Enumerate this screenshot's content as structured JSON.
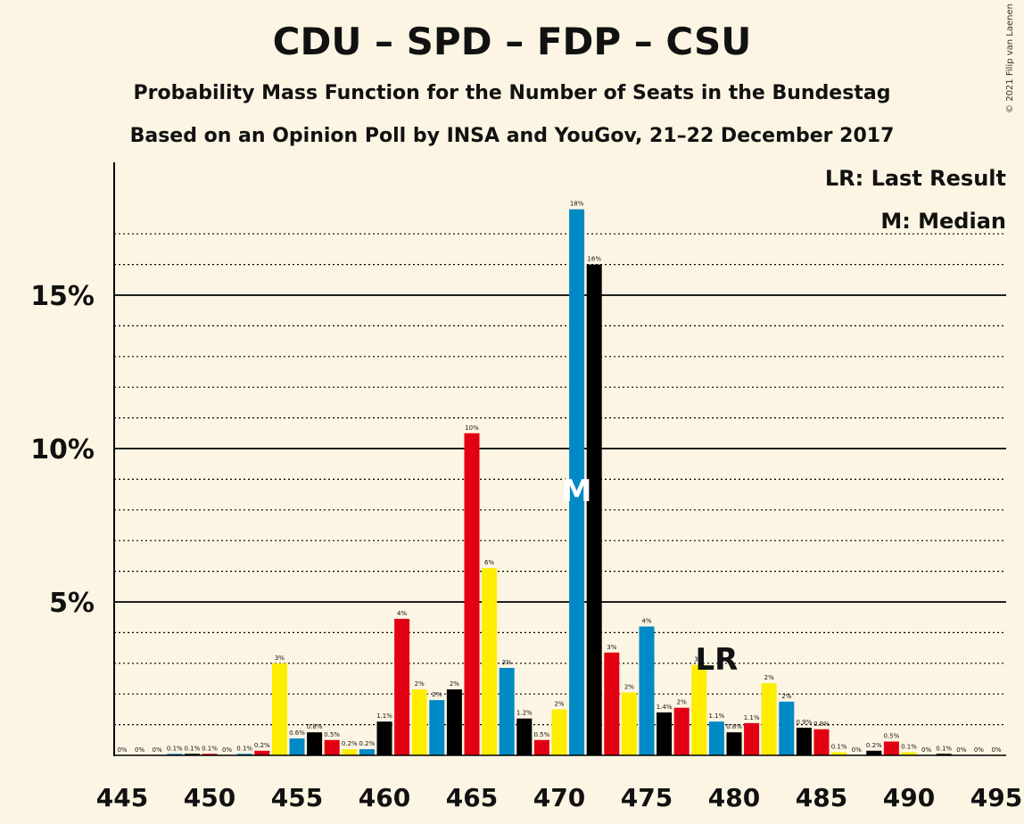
{
  "header": {
    "title": "CDU – SPD – FDP – CSU",
    "subtitle1": "Probability Mass Function for the Number of Seats in the Bundestag",
    "subtitle2": "Based on an Opinion Poll by INSA and YouGov, 21–22 December 2017",
    "copyright": "© 2021 Filip van Laenen"
  },
  "legend": {
    "last_result": "LR: Last Result",
    "median": "M: Median"
  },
  "colors": {
    "background": "#fdf5e3",
    "CDU": "#000000",
    "SPD": "#e30013",
    "FDP": "#ffed00",
    "CSU": "#008ac5"
  },
  "chart_data": {
    "type": "bar",
    "xlabel": "",
    "ylabel": "",
    "xlim": [
      445,
      495
    ],
    "ylim": [
      0,
      19
    ],
    "y_ticks": [
      {
        "value": 5,
        "label": "5%"
      },
      {
        "value": 10,
        "label": "10%"
      },
      {
        "value": 15,
        "label": "15%"
      }
    ],
    "x_ticks": [
      445,
      450,
      455,
      460,
      465,
      470,
      475,
      480,
      485,
      490,
      495
    ],
    "grid": "dotted every 1%, solid at 5%, 10%, 15%",
    "median_seat": 471,
    "last_result_seat": 479,
    "markers": {
      "median": "M",
      "last_result": "LR"
    },
    "bars": [
      {
        "x": 445,
        "value": 0.0,
        "label": "0%",
        "color": "CDU"
      },
      {
        "x": 446,
        "value": 0.0,
        "label": "0%",
        "color": "SPD"
      },
      {
        "x": 447,
        "value": 0.0,
        "label": "0%",
        "color": "FDP"
      },
      {
        "x": 448,
        "value": 0.05,
        "label": "0.1%",
        "color": "CSU"
      },
      {
        "x": 449,
        "value": 0.05,
        "label": "0.1%",
        "color": "CDU"
      },
      {
        "x": 450,
        "value": 0.05,
        "label": "0.1%",
        "color": "SPD"
      },
      {
        "x": 451,
        "value": 0.0,
        "label": "0%",
        "color": "FDP"
      },
      {
        "x": 452,
        "value": 0.05,
        "label": "0.1%",
        "color": "CSU"
      },
      {
        "x": 453,
        "value": 0.15,
        "label": "0.2%",
        "color": "SPD"
      },
      {
        "x": 454,
        "value": 3.0,
        "label": "3%",
        "color": "FDP"
      },
      {
        "x": 455,
        "value": 0.55,
        "label": "0.6%",
        "color": "CSU"
      },
      {
        "x": 456,
        "value": 0.75,
        "label": "0.8%",
        "color": "CDU"
      },
      {
        "x": 457,
        "value": 0.5,
        "label": "0.5%",
        "color": "SPD"
      },
      {
        "x": 458,
        "value": 0.2,
        "label": "0.2%",
        "color": "FDP"
      },
      {
        "x": 459,
        "value": 0.2,
        "label": "0.2%",
        "color": "CSU"
      },
      {
        "x": 460,
        "value": 1.1,
        "label": "1.1%",
        "color": "CDU"
      },
      {
        "x": 461,
        "value": 4.45,
        "label": "4%",
        "color": "SPD"
      },
      {
        "x": 462,
        "value": 2.15,
        "label": "2%",
        "color": "FDP"
      },
      {
        "x": 463,
        "value": 1.8,
        "label": "2%",
        "color": "CSU"
      },
      {
        "x": 464,
        "value": 2.15,
        "label": "2%",
        "color": "CDU"
      },
      {
        "x": 465,
        "value": 10.5,
        "label": "10%",
        "color": "SPD"
      },
      {
        "x": 466,
        "value": 6.1,
        "label": "6%",
        "color": "FDP"
      },
      {
        "x": 467,
        "value": 2.85,
        "label": "3%",
        "color": "CSU"
      },
      {
        "x": 468,
        "value": 1.2,
        "label": "1.2%",
        "color": "CDU"
      },
      {
        "x": 469,
        "value": 0.5,
        "label": "0.5%",
        "color": "SPD"
      },
      {
        "x": 470,
        "value": 1.5,
        "label": "2%",
        "color": "FDP"
      },
      {
        "x": 471,
        "value": 17.8,
        "label": "18%",
        "color": "CSU"
      },
      {
        "x": 472,
        "value": 16.0,
        "label": "16%",
        "color": "CDU"
      },
      {
        "x": 473,
        "value": 3.35,
        "label": "3%",
        "color": "SPD"
      },
      {
        "x": 474,
        "value": 2.05,
        "label": "2%",
        "color": "FDP"
      },
      {
        "x": 475,
        "value": 4.2,
        "label": "4%",
        "color": "CSU"
      },
      {
        "x": 476,
        "value": 1.4,
        "label": "1.4%",
        "color": "CDU"
      },
      {
        "x": 477,
        "value": 1.55,
        "label": "2%",
        "color": "SPD"
      },
      {
        "x": 478,
        "value": 2.95,
        "label": "3%",
        "color": "FDP"
      },
      {
        "x": 479,
        "value": 1.1,
        "label": "1.1%",
        "color": "CSU"
      },
      {
        "x": 480,
        "value": 0.75,
        "label": "0.8%",
        "color": "CDU"
      },
      {
        "x": 481,
        "value": 1.05,
        "label": "1.1%",
        "color": "SPD"
      },
      {
        "x": 482,
        "value": 2.35,
        "label": "2%",
        "color": "FDP"
      },
      {
        "x": 483,
        "value": 1.75,
        "label": "2%",
        "color": "CSU"
      },
      {
        "x": 484,
        "value": 0.9,
        "label": "0.9%",
        "color": "CDU"
      },
      {
        "x": 485,
        "value": 0.85,
        "label": "0.9%",
        "color": "SPD"
      },
      {
        "x": 486,
        "value": 0.1,
        "label": "0.1%",
        "color": "FDP"
      },
      {
        "x": 487,
        "value": 0.0,
        "label": "0%",
        "color": "CSU"
      },
      {
        "x": 488,
        "value": 0.15,
        "label": "0.2%",
        "color": "CDU"
      },
      {
        "x": 489,
        "value": 0.45,
        "label": "0.5%",
        "color": "SPD"
      },
      {
        "x": 490,
        "value": 0.1,
        "label": "0.1%",
        "color": "FDP"
      },
      {
        "x": 491,
        "value": 0.0,
        "label": "0%",
        "color": "CSU"
      },
      {
        "x": 492,
        "value": 0.05,
        "label": "0.1%",
        "color": "CDU"
      },
      {
        "x": 493,
        "value": 0.0,
        "label": "0%",
        "color": "SPD"
      },
      {
        "x": 494,
        "value": 0.0,
        "label": "0%",
        "color": "FDP"
      },
      {
        "x": 495,
        "value": 0.0,
        "label": "0%",
        "color": "CSU"
      }
    ]
  }
}
